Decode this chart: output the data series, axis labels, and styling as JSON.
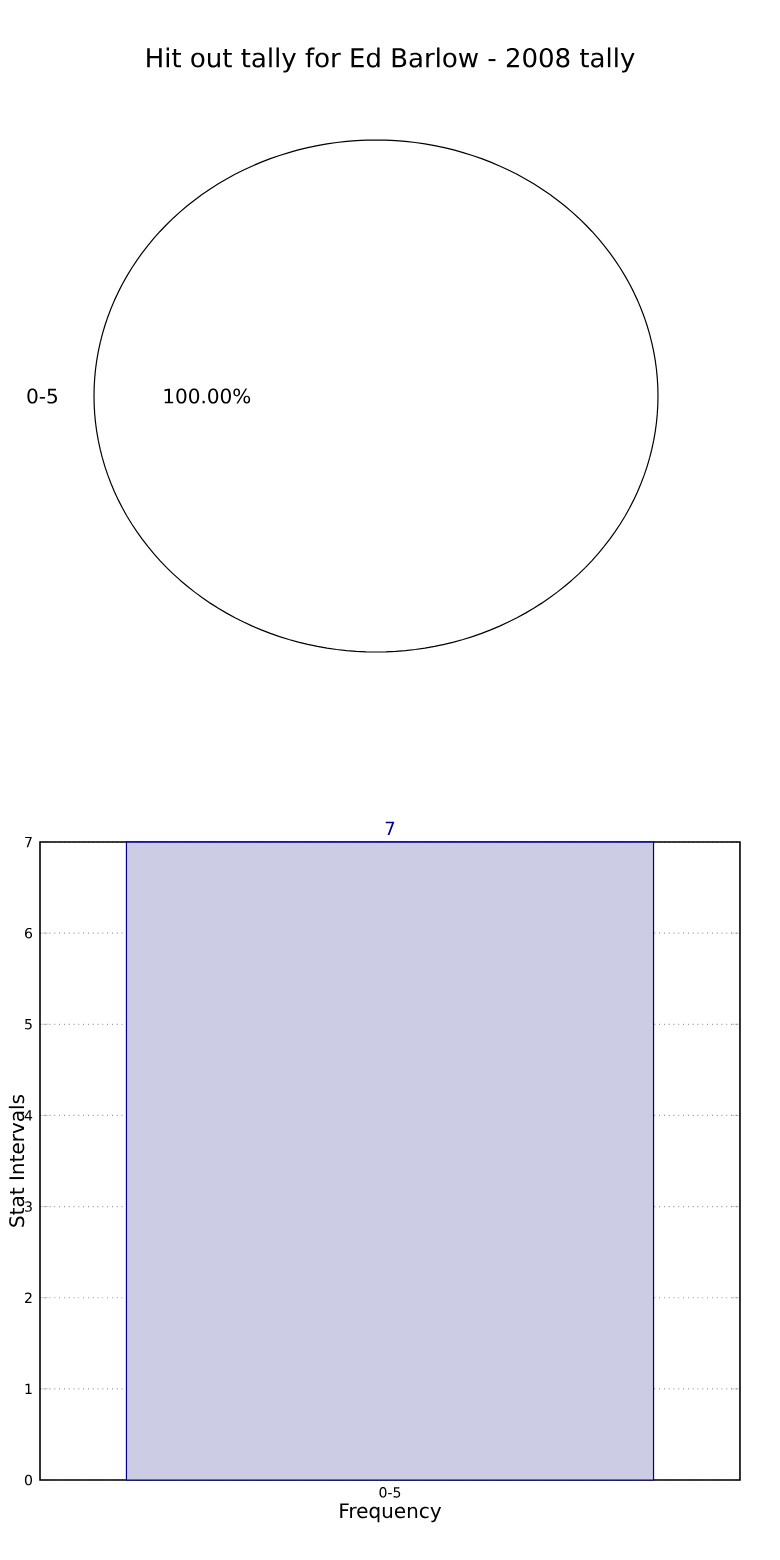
{
  "chart_data": [
    {
      "type": "pie",
      "title": "Hit out tally for Ed Barlow - 2008 tally",
      "categories": [
        "0-5"
      ],
      "values": [
        100
      ],
      "value_labels": [
        "100.00%"
      ],
      "colors": [
        "#ffffff"
      ]
    },
    {
      "type": "bar",
      "categories": [
        "0-5"
      ],
      "values": [
        7
      ],
      "color": "#ccccE4",
      "ylim": [
        0,
        7
      ],
      "yticks": [
        0,
        1,
        2,
        3,
        4,
        5,
        6,
        7
      ],
      "grid": true,
      "data_labels": true,
      "xlabel": "Frequency",
      "ylabel": "Stat Intervals"
    }
  ]
}
